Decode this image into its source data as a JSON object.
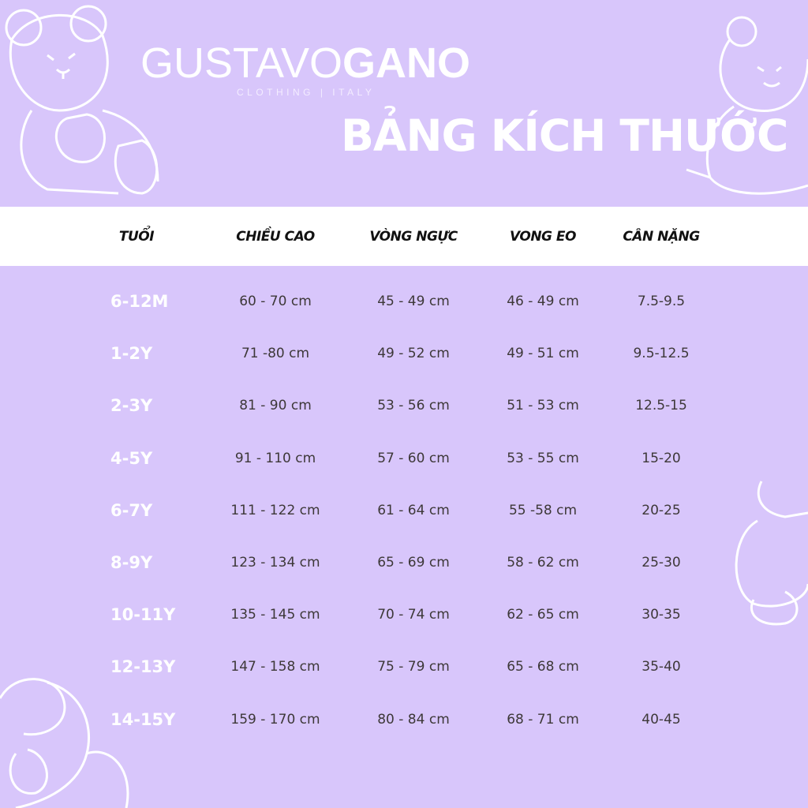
{
  "brand": {
    "name_light": "GUSTAVO",
    "name_bold": "GANO",
    "tagline": "CLOTHING | ITALY"
  },
  "title": "BẢNG KÍCH THƯỚC",
  "colors": {
    "background": "#d8c6fb",
    "header_band": "#ffffff",
    "age_text": "#ffffff",
    "cell_text": "#3d3838"
  },
  "table": {
    "headers": [
      "TUỔI",
      "CHIỀU CAO",
      "VÒNG NGỰC",
      "VONG EO",
      "CÂN NẶNG"
    ],
    "rows": [
      [
        "6-12M",
        "60 - 70 cm",
        "45 - 49 cm",
        "46 - 49 cm",
        "7.5-9.5"
      ],
      [
        "1-2Y",
        "71 -80 cm",
        "49 - 52 cm",
        "49 - 51 cm",
        "9.5-12.5"
      ],
      [
        "2-3Y",
        "81 - 90 cm",
        "53 - 56 cm",
        "51 - 53 cm",
        "12.5-15"
      ],
      [
        "4-5Y",
        "91 - 110 cm",
        "57 - 60 cm",
        "53 - 55 cm",
        "15-20"
      ],
      [
        "6-7Y",
        "111 - 122 cm",
        "61 - 64 cm",
        "55 -58 cm",
        "20-25"
      ],
      [
        "8-9Y",
        "123 - 134 cm",
        "65 - 69 cm",
        "58 - 62 cm",
        "25-30"
      ],
      [
        "10-11Y",
        "135 - 145 cm",
        "70 - 74 cm",
        "62 - 65 cm",
        "30-35"
      ],
      [
        "12-13Y",
        "147 - 158 cm",
        "75 - 79 cm",
        "65 - 68 cm",
        "35-40"
      ],
      [
        "14-15Y",
        "159 - 170 cm",
        "80 - 84 cm",
        "68 - 71 cm",
        "40-45"
      ]
    ]
  }
}
